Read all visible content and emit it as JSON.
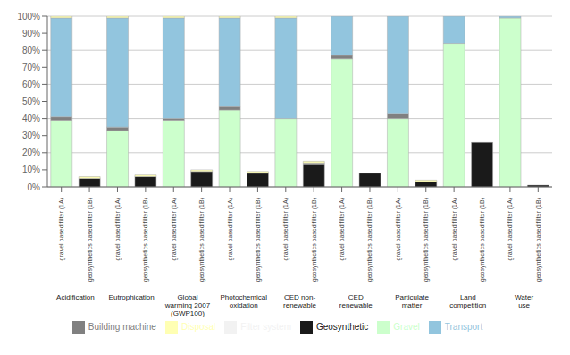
{
  "chart_data": {
    "type": "bar",
    "stacked": true,
    "grid": true,
    "legend": "bottom",
    "categories": [
      "gravel based filter (1A)",
      "geosynthetics based filter (1B)",
      "gravel based filter (1A)",
      "geosynthetics based filter (1B)",
      "gravel based filter (1A)",
      "geosynthetics based filter (1B)",
      "gravel based filter (1A)",
      "geosynthetics based filter (1B)",
      "gravel based filter (1A)",
      "geosynthetics based filter (1B)",
      "gravel based filter (1A)",
      "geosynthetics based filter (1B)",
      "gravel based filter (1A)",
      "geosynthetics based filter (1B)",
      "gravel based filter (1A)",
      "geosynthetics based filter (1B)",
      "gravel based filter (1A)",
      "geosynthetics based filter (1B)"
    ],
    "groups": [
      "Acidification",
      "Eutrophication",
      "Global\nwarming 2007\n(GWP100)",
      "Photochemical\noxidation",
      "CED non-\nrenewable",
      "CED\nrenewable",
      "Particulate\nmatter",
      "Land\ncompetition",
      "Water\nuse"
    ],
    "series": [
      {
        "name": "Filter system",
        "color": "#f2f2f2",
        "values": [
          0,
          0,
          0,
          0,
          0,
          0,
          0,
          0,
          0,
          0,
          0,
          0,
          0,
          0,
          0,
          0,
          0,
          0
        ]
      },
      {
        "name": "Gravel",
        "color": "#ccffcc",
        "values": [
          39,
          0,
          33,
          0,
          39,
          0,
          45,
          0,
          40,
          0,
          75,
          0,
          40,
          0,
          84,
          0,
          99,
          0
        ]
      },
      {
        "name": "Geosynthetic",
        "color": "#1a1a1a",
        "values": [
          0,
          5,
          0,
          6,
          0,
          9,
          0,
          8,
          0,
          13,
          0,
          8,
          0,
          3,
          0,
          26,
          0,
          1
        ]
      },
      {
        "name": "Building machine",
        "color": "#808080",
        "values": [
          2,
          0,
          2,
          0,
          1,
          0,
          2,
          0,
          0,
          1,
          2,
          0,
          3,
          0,
          0,
          0,
          0,
          0
        ]
      },
      {
        "name": "Transport",
        "color": "#92c5de",
        "values": [
          58,
          0,
          64,
          0,
          59,
          0,
          52,
          0,
          59,
          0,
          23,
          0,
          57,
          0,
          16,
          0,
          1,
          0
        ]
      },
      {
        "name": "Disposal",
        "color": "#ffffb3",
        "values": [
          1,
          1,
          1,
          1,
          1,
          1,
          1,
          1,
          1,
          1,
          0,
          0,
          0,
          1,
          0,
          0,
          0,
          0
        ]
      }
    ],
    "ylim": [
      0,
      100
    ],
    "yticks": [
      {
        "value": 0,
        "label": "0%"
      },
      {
        "value": 10,
        "label": "10%"
      },
      {
        "value": 20,
        "label": "20%"
      },
      {
        "value": 30,
        "label": "30%"
      },
      {
        "value": 40,
        "label": "40%"
      },
      {
        "value": 50,
        "label": "50%"
      },
      {
        "value": 60,
        "label": "60%"
      },
      {
        "value": 70,
        "label": "70%"
      },
      {
        "value": 80,
        "label": "80%"
      },
      {
        "value": 90,
        "label": "90%"
      },
      {
        "value": 100,
        "label": "100%"
      }
    ]
  }
}
